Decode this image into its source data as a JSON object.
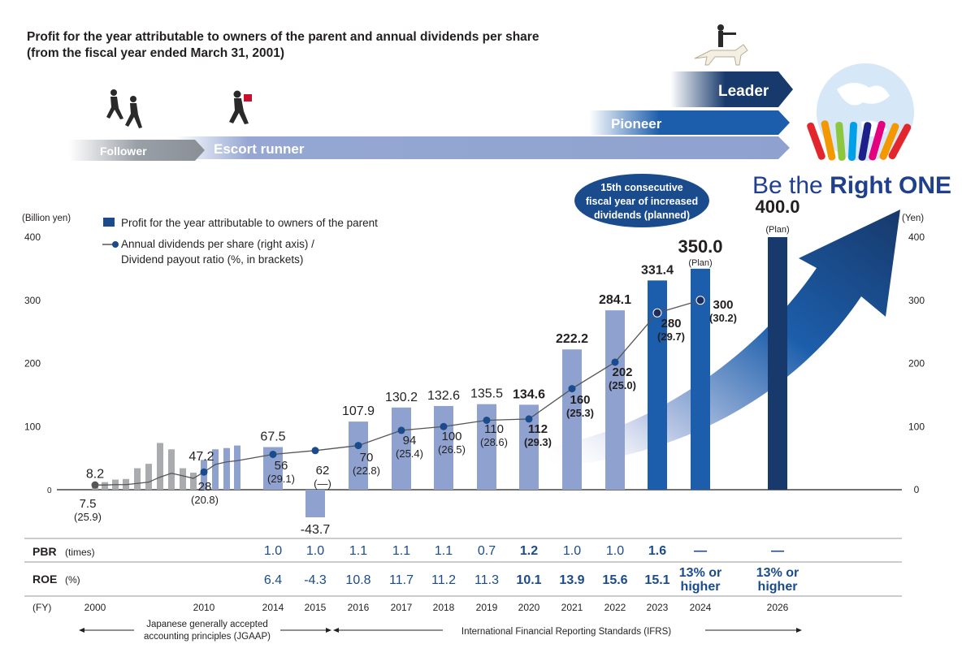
{
  "title": {
    "line1": "Profit for the year attributable to owners of the parent and annual dividends per share",
    "line2": "(from the fiscal year ended March 31, 2001)"
  },
  "stages": {
    "follower": "Follower",
    "escort": "Escort runner",
    "pioneer": "Pioneer",
    "leader": "Leader"
  },
  "brand": {
    "light": "Be the ",
    "bold": "Right ONE"
  },
  "bubble": {
    "line1": "15th consecutive",
    "line2": "fiscal year of increased",
    "line3": "dividends (planned)"
  },
  "legend": {
    "bar": "Profit for the year attributable to owners of the parent",
    "line1": "Annual dividends per share (right axis) /",
    "line2": "Dividend payout ratio (%, in brackets)"
  },
  "axes": {
    "left_unit": "(Billion yen)",
    "right_unit": "(Yen)",
    "left_ticks": [
      "0",
      "100",
      "200",
      "300",
      "400"
    ],
    "right_ticks": [
      "0",
      "100",
      "200",
      "300",
      "400"
    ]
  },
  "colors": {
    "bar_light": "#8fa2cf",
    "bar_mid": "#1c5eab",
    "bar_dark": "#17396b",
    "gray_bar": "#a9abae",
    "line": "#555555",
    "marker": "#1a4b8c",
    "metric": "#1a4b8c",
    "arrow_light": "#95a7d2",
    "arrow_mid": "#1c5eab",
    "arrow_dark": "#17396b",
    "bubble": "#1a4b8c"
  },
  "chart_data": {
    "type": "bar",
    "title": "Profit for the year attributable to owners of the parent and annual dividends per share",
    "ylabel_left": "(Billion yen)",
    "ylabel_right": "(Yen)",
    "ylim": [
      -50,
      400
    ],
    "early_years": {
      "profit": [
        8.2,
        12,
        16,
        17,
        34,
        41,
        74,
        64,
        34,
        27,
        47.2,
        64,
        66,
        70
      ],
      "dividend": [
        7.5,
        7.5,
        8,
        8,
        10,
        12,
        20,
        26,
        22,
        18,
        28,
        40,
        44,
        46
      ]
    },
    "early_labels": {
      "year_2000": "2000",
      "year_2010": "2010",
      "profit_2000": "8.2",
      "div_2000": "7.5",
      "payout_2000": "(25.9)",
      "profit_2010": "47.2",
      "div_2010": "28",
      "payout_2010": "(20.8)"
    },
    "categories": [
      "2014",
      "2015",
      "2016",
      "2017",
      "2018",
      "2019",
      "2020",
      "2021",
      "2022",
      "2023",
      "2024",
      "2026"
    ],
    "profit": [
      67.5,
      -43.7,
      107.9,
      130.2,
      132.6,
      135.5,
      134.6,
      222.2,
      284.1,
      331.4,
      350.0,
      400.0
    ],
    "profit_labels": [
      "67.5",
      "-43.7",
      "107.9",
      "130.2",
      "132.6",
      "135.5",
      "134.6",
      "222.2",
      "284.1",
      "331.4",
      "350.0",
      "400.0"
    ],
    "dividend": [
      56,
      62,
      70,
      94,
      100,
      110,
      112,
      160,
      202,
      280,
      300,
      null
    ],
    "dividend_labels": [
      "56",
      "62",
      "70",
      "94",
      "100",
      "110",
      "112",
      "160",
      "202",
      "280",
      "300",
      ""
    ],
    "payout_labels": [
      "(29.1)",
      "(—)",
      "(22.8)",
      "(25.4)",
      "(26.5)",
      "(28.6)",
      "(29.3)",
      "(25.3)",
      "(25.0)",
      "(29.7)",
      "(30.2)",
      ""
    ],
    "plan_note": "(Plan)",
    "pbr_label": "PBR",
    "pbr_unit": "(times)",
    "pbr": [
      "1.0",
      "1.0",
      "1.1",
      "1.1",
      "1.1",
      "0.7",
      "1.2",
      "1.0",
      "1.0",
      "1.6",
      "—",
      "—"
    ],
    "roe_label": "ROE",
    "roe_unit": "(%)",
    "roe": [
      "6.4",
      "-4.3",
      "10.8",
      "11.7",
      "11.2",
      "11.3",
      "10.1",
      "13.9",
      "15.6",
      "15.1"
    ],
    "roe_target_line1": "13% or",
    "roe_target_line2": "higher",
    "fy_label": "(FY)",
    "jgaap_line1": "Japanese generally accepted",
    "jgaap_line2": "accounting principles (JGAAP)",
    "ifrs": "International Financial Reporting Standards (IFRS)"
  }
}
